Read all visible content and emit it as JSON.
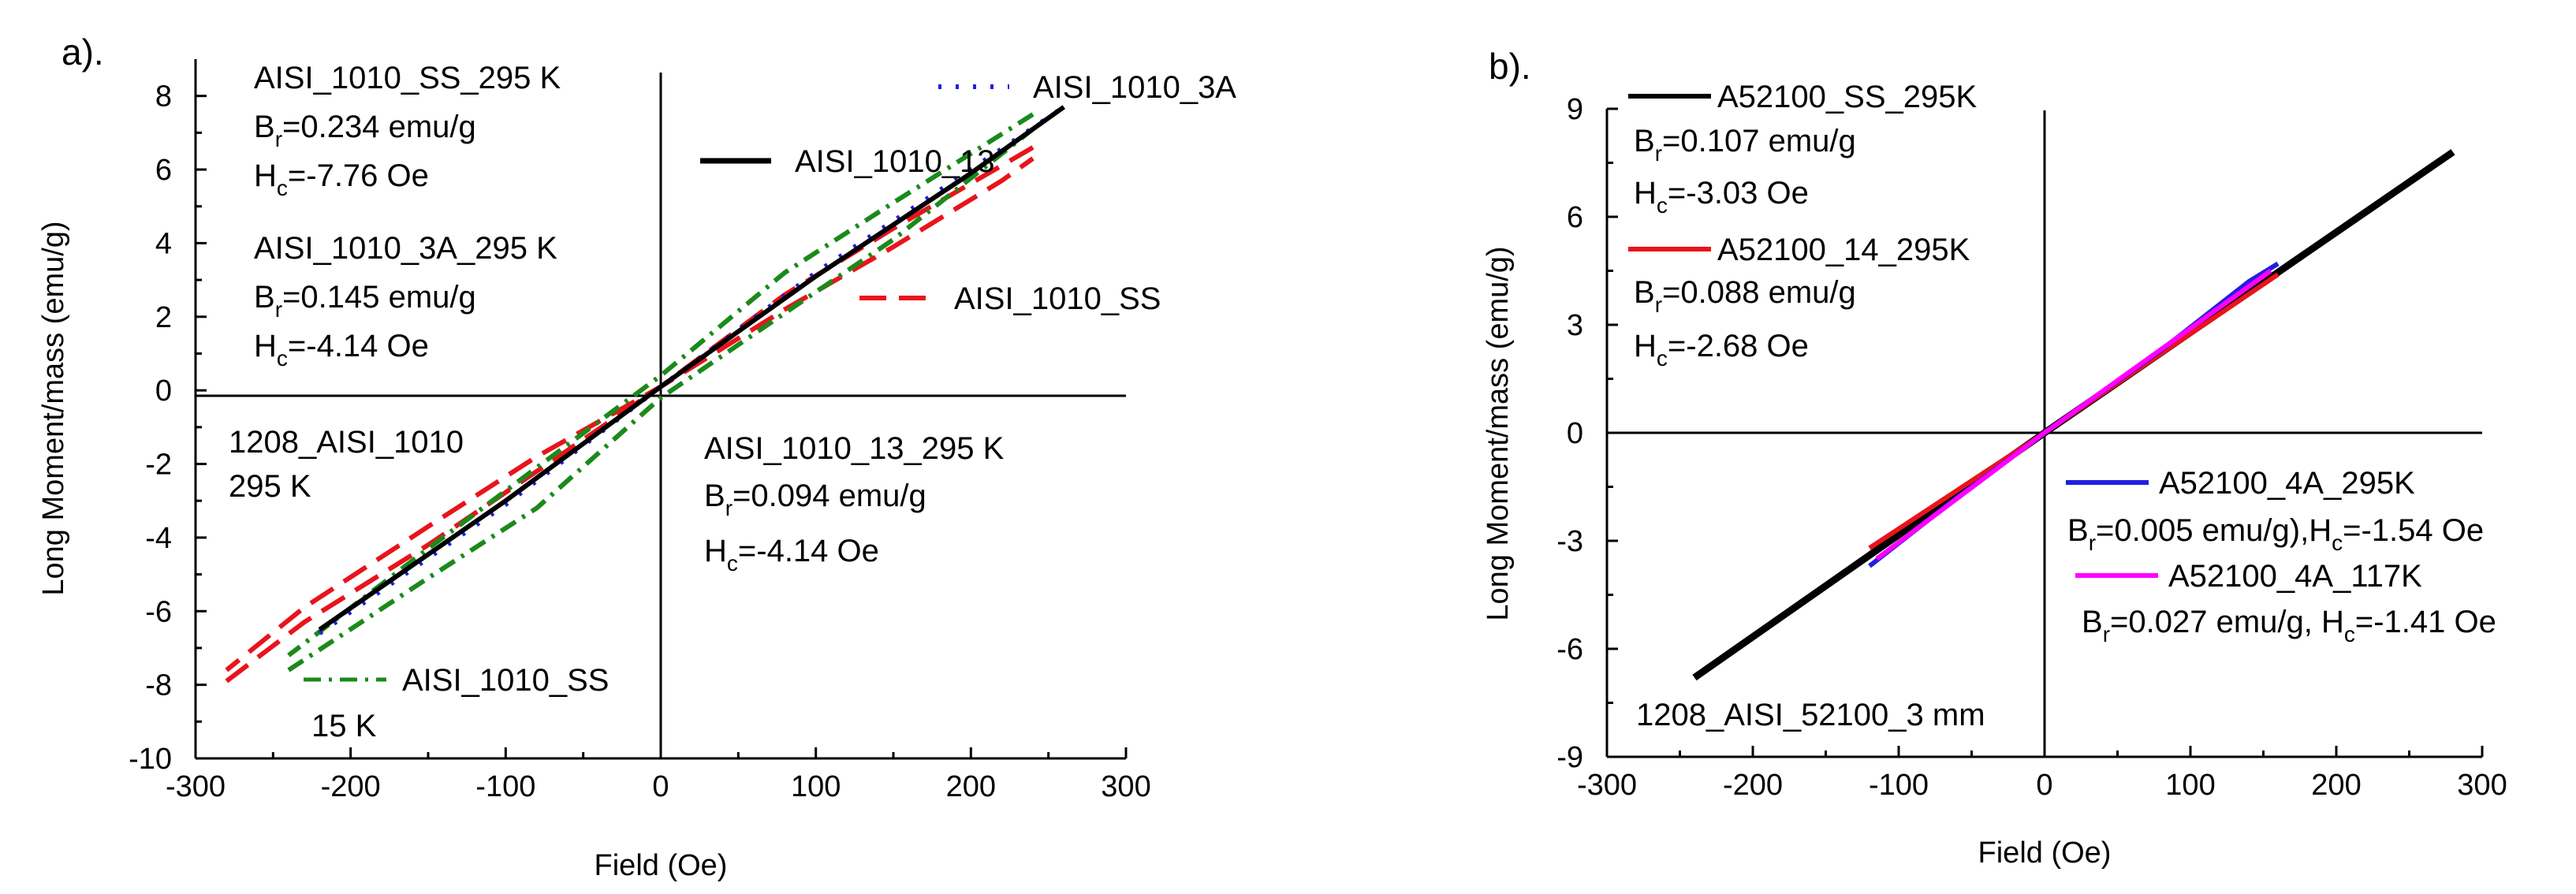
{
  "chart_data": [
    {
      "type": "line",
      "panel_label": "a).",
      "xlabel": "Field (Oe)",
      "ylabel": "Long Moment/mass (emu/g)",
      "xlim": [
        -300,
        300
      ],
      "ylim": [
        -10,
        9
      ],
      "xticks": [
        -300,
        -200,
        -100,
        0,
        100,
        200,
        300
      ],
      "yticks": [
        -10,
        -8,
        -6,
        -4,
        -2,
        0,
        2,
        4,
        6,
        8
      ],
      "grid": false,
      "series": [
        {
          "name": "AISI_1010_SS",
          "color": "#e8141c",
          "dash": "dashed",
          "points": [
            [
              -280,
              -7.9
            ],
            [
              -230,
              -6.3
            ],
            [
              -150,
              -4.2
            ],
            [
              -80,
              -2.2
            ],
            [
              0,
              0.1
            ],
            [
              80,
              2.2
            ],
            [
              150,
              3.9
            ],
            [
              220,
              5.7
            ],
            [
              240,
              6.3
            ]
          ],
          "points_return": [
            [
              240,
              6.6
            ],
            [
              150,
              4.4
            ],
            [
              80,
              2.6
            ],
            [
              0,
              0.1
            ],
            [
              -80,
              -1.8
            ],
            [
              -150,
              -3.7
            ],
            [
              -230,
              -5.9
            ],
            [
              -280,
              -7.6
            ]
          ]
        },
        {
          "name": "AISI_1010_SS",
          "color": "#1a8a1a",
          "dash": "dashdot",
          "points": [
            [
              -240,
              -7.6
            ],
            [
              -150,
              -5.1
            ],
            [
              -80,
              -3.2
            ],
            [
              0,
              -0.2
            ],
            [
              80,
              2.1
            ],
            [
              150,
              4.1
            ],
            [
              240,
              7.1
            ]
          ],
          "points_return": [
            [
              240,
              7.5
            ],
            [
              150,
              5.1
            ],
            [
              80,
              3.2
            ],
            [
              0,
              0.4
            ],
            [
              -80,
              -2.1
            ],
            [
              -150,
              -4.3
            ],
            [
              -240,
              -7.2
            ]
          ]
        },
        {
          "name": "AISI_1010_3A",
          "color": "#1f1fe0",
          "dash": "dotted",
          "points": [
            [
              -220,
              -6.6
            ],
            [
              -100,
              -3.1
            ],
            [
              0,
              0.1
            ],
            [
              100,
              3.2
            ],
            [
              200,
              6.0
            ],
            [
              260,
              7.7
            ]
          ]
        },
        {
          "name": "AISI_1010_13",
          "color": "#000000",
          "dash": "solid",
          "points": [
            [
              -220,
              -6.5
            ],
            [
              -100,
              -3.0
            ],
            [
              0,
              0.1
            ],
            [
              100,
              3.1
            ],
            [
              200,
              5.9
            ],
            [
              260,
              7.7
            ]
          ]
        }
      ],
      "legend": {
        "placement": "top-right",
        "entries": [
          "AISI_1010_3A",
          "AISI_1010_13",
          "AISI_1010_SS",
          "AISI_1010_SS"
        ],
        "extra": "15 K"
      },
      "annotations": {
        "ss_title": "AISI_1010_SS_295 K",
        "ss_br": "=0.234 emu/g",
        "ss_hc": "=-7.76 Oe",
        "a3_title": "AISI_1010_3A_295 K",
        "a3_br": "=0.145 emu/g",
        "a3_hc": "=-4.14 Oe",
        "a13_title": "AISI_1010_13_295 K",
        "a13_br": "=0.094 emu/g",
        "a13_hc": "=-4.14 Oe",
        "sample1": "1208_AISI_1010",
        "sample2": "295 K"
      }
    },
    {
      "type": "line",
      "panel_label": "b).",
      "xlabel": "Field (Oe)",
      "ylabel": "Long Moment/mass (emu/g)",
      "xlim": [
        -300,
        300
      ],
      "ylim": [
        -9,
        9
      ],
      "xticks": [
        -300,
        -200,
        -100,
        0,
        100,
        200,
        300
      ],
      "yticks": [
        -9,
        -6,
        -3,
        0,
        3,
        6,
        9
      ],
      "grid": false,
      "series": [
        {
          "name": "A52100_SS_295K",
          "color": "#000000",
          "points": [
            [
              -240,
              -6.8
            ],
            [
              -120,
              -3.4
            ],
            [
              0,
              0.0
            ],
            [
              140,
              3.9
            ],
            [
              280,
              7.8
            ]
          ]
        },
        {
          "name": "A52100_14_295K",
          "color": "#e8141c",
          "points": [
            [
              -120,
              -3.2
            ],
            [
              0,
              0.0
            ],
            [
              160,
              4.4
            ]
          ]
        },
        {
          "name": "A52100_4A_295K",
          "color": "#1f1fe0",
          "points": [
            [
              -120,
              -3.7
            ],
            [
              -60,
              -1.8
            ],
            [
              0,
              0.0
            ],
            [
              80,
              2.3
            ],
            [
              140,
              4.2
            ],
            [
              160,
              4.7
            ]
          ]
        },
        {
          "name": "A52100_4A_117K",
          "color": "#ff00ff",
          "points": [
            [
              -115,
              -3.5
            ],
            [
              0,
              0.0
            ],
            [
              155,
              4.5
            ]
          ]
        }
      ],
      "legend": {
        "placement": "top-left",
        "entries": [
          "A52100_SS_295K",
          "A52100_14_295K",
          "A52100_4A_295K",
          "A52100_4A_117K"
        ]
      },
      "annotations": {
        "ss_br": "=0.107 emu/g",
        "ss_hc": "=-3.03 Oe",
        "s14_br": "=0.088 emu/g",
        "s14_hc": "=-2.68 Oe",
        "s4a295": "=0.005 emu/g),H",
        "s4a295_hc": "=-1.54 Oe",
        "s4a117": "=0.027 emu/g, H",
        "s4a117_hc": "=-1.41 Oe",
        "sample": "1208_AISI_52100_3 mm"
      }
    }
  ]
}
